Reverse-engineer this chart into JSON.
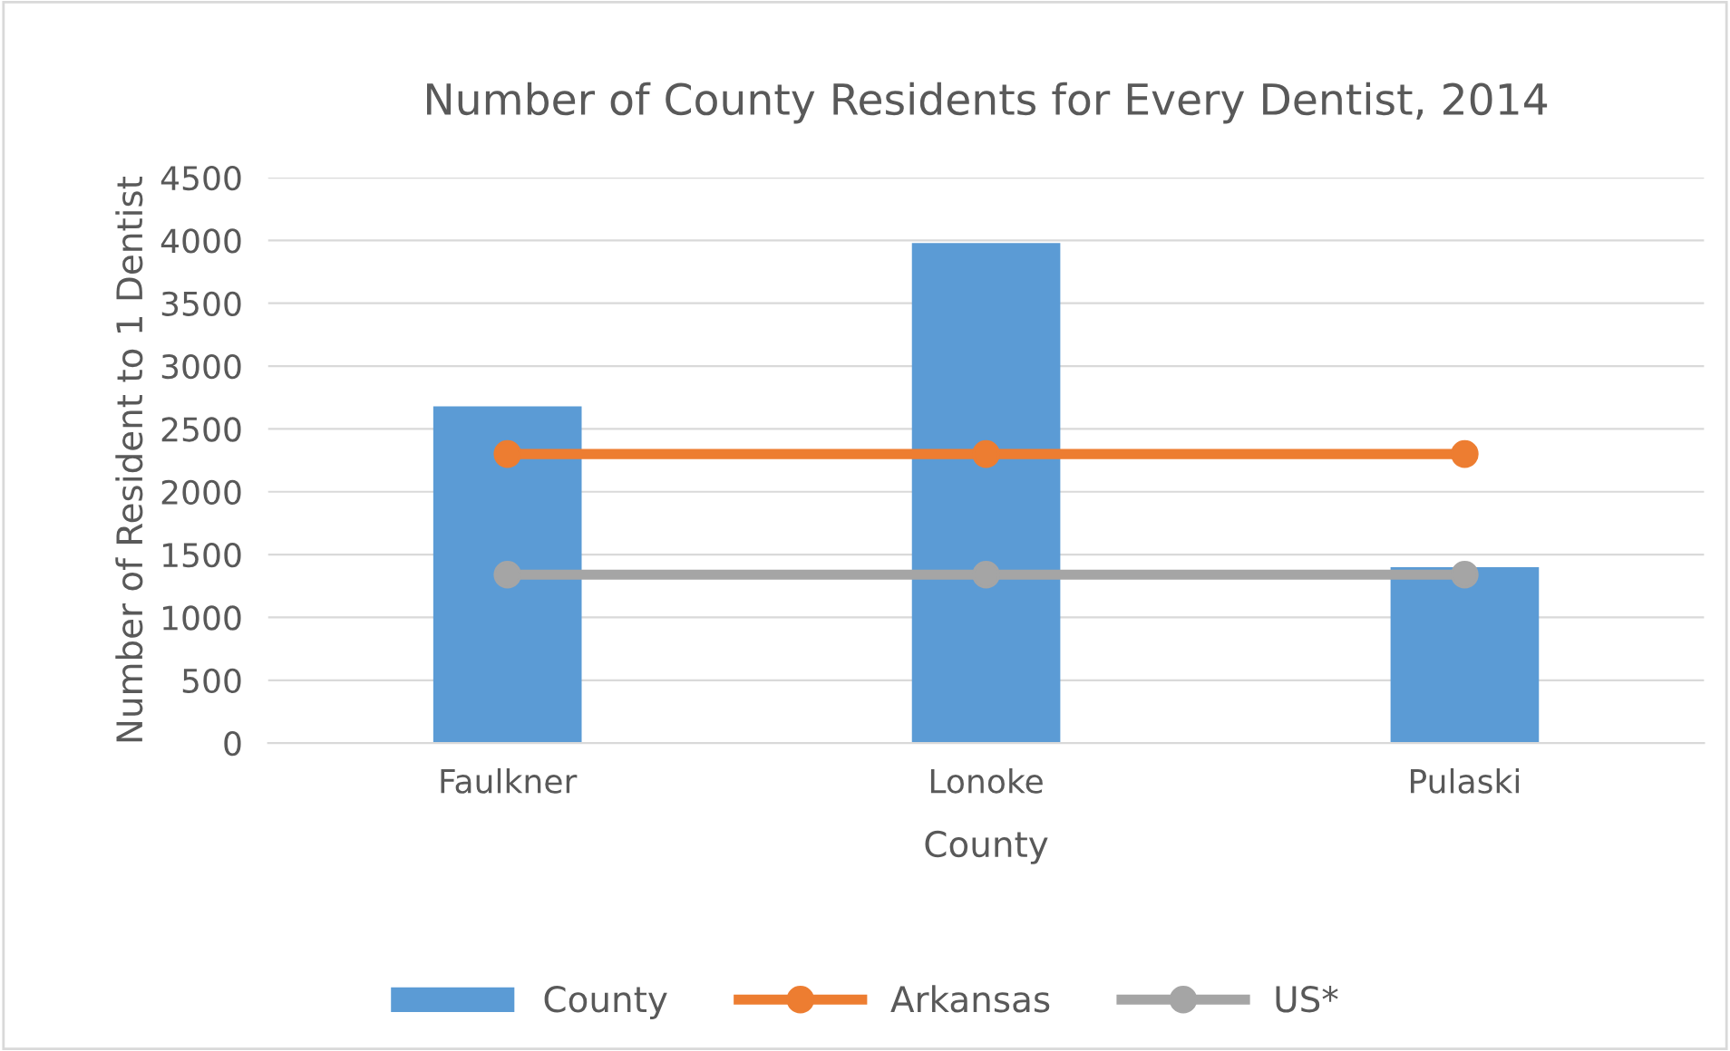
{
  "chart_data": {
    "type": "bar",
    "title": "Number of County Residents for Every Dentist, 2014",
    "xlabel": "County",
    "ylabel": "Number of Resident to 1 Dentist",
    "categories": [
      "Faulkner",
      "Lonoke",
      "Pulaski"
    ],
    "series": [
      {
        "name": "County",
        "color": "#5b9bd5",
        "values": [
          2680,
          3980,
          1400
        ]
      },
      {
        "name": "Arkansas",
        "type": "line",
        "color": "#ed7d31",
        "values": [
          2300,
          2300,
          2300
        ]
      },
      {
        "name": "US*",
        "type": "line",
        "color": "#a5a5a5",
        "values": [
          1340,
          1340,
          1340
        ]
      }
    ],
    "ylim": [
      0,
      4500
    ],
    "yticks": [
      0,
      500,
      1000,
      1500,
      2000,
      2500,
      3000,
      3500,
      4000,
      4500
    ],
    "grid": "y",
    "legend": "bottom",
    "marker": "circle"
  }
}
